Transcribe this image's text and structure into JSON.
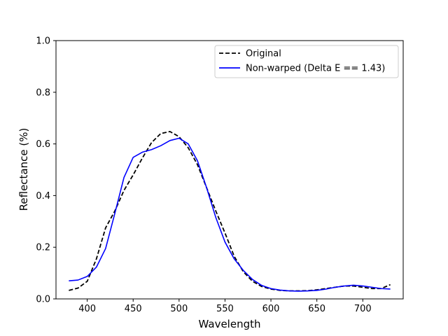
{
  "chart_data": {
    "type": "line",
    "xlabel": "Wavelength",
    "ylabel": "Reflectance (%)",
    "xlim": [
      366,
      744
    ],
    "ylim": [
      0.0,
      1.0
    ],
    "xticks": [
      400,
      450,
      500,
      550,
      600,
      650,
      700
    ],
    "yticks": [
      0.0,
      0.2,
      0.4,
      0.6,
      0.8,
      1.0
    ],
    "xtick_labels": [
      "400",
      "450",
      "500",
      "550",
      "600",
      "650",
      "700"
    ],
    "ytick_labels": [
      "0.0",
      "0.2",
      "0.4",
      "0.6",
      "0.8",
      "1.0"
    ],
    "grid": false,
    "legend_position": "top-right",
    "x": [
      380,
      390,
      400,
      410,
      420,
      430,
      440,
      450,
      460,
      470,
      480,
      490,
      500,
      510,
      520,
      530,
      540,
      550,
      560,
      570,
      580,
      590,
      600,
      610,
      620,
      630,
      640,
      650,
      660,
      670,
      680,
      690,
      700,
      710,
      720,
      730
    ],
    "series": [
      {
        "name": "Original",
        "color": "#000000",
        "dash": "dashed",
        "values": [
          0.033,
          0.042,
          0.068,
          0.155,
          0.275,
          0.34,
          0.42,
          0.48,
          0.545,
          0.605,
          0.64,
          0.648,
          0.628,
          0.585,
          0.52,
          0.43,
          0.34,
          0.255,
          0.165,
          0.105,
          0.068,
          0.048,
          0.038,
          0.033,
          0.031,
          0.031,
          0.032,
          0.035,
          0.04,
          0.045,
          0.05,
          0.05,
          0.045,
          0.04,
          0.04,
          0.055
        ]
      },
      {
        "name": "Non-warped (Delta E == 1.43)",
        "color": "#0000ff",
        "dash": "solid",
        "values": [
          0.07,
          0.073,
          0.087,
          0.123,
          0.195,
          0.33,
          0.47,
          0.548,
          0.568,
          0.578,
          0.593,
          0.613,
          0.622,
          0.6,
          0.535,
          0.43,
          0.315,
          0.22,
          0.155,
          0.11,
          0.075,
          0.052,
          0.04,
          0.034,
          0.031,
          0.03,
          0.031,
          0.033,
          0.038,
          0.045,
          0.05,
          0.053,
          0.05,
          0.045,
          0.04,
          0.038
        ]
      }
    ]
  }
}
